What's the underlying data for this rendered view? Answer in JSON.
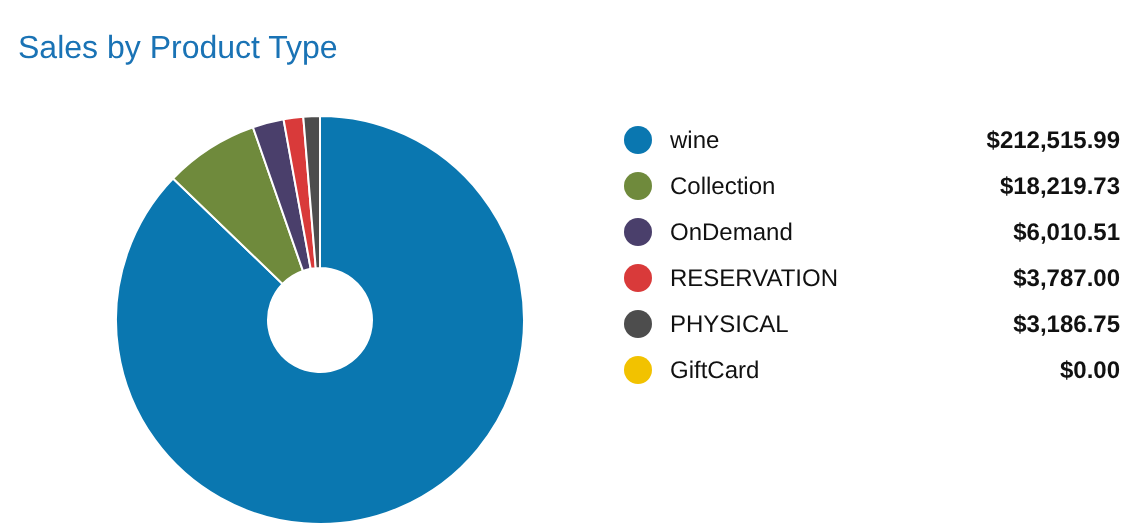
{
  "chart_data": {
    "type": "donut",
    "title": "Sales by Product Type",
    "categories": [
      "wine",
      "Collection",
      "OnDemand",
      "RESERVATION",
      "PHYSICAL",
      "GiftCard"
    ],
    "values": [
      212515.99,
      18219.73,
      6010.51,
      3787.0,
      3186.75,
      0.0
    ],
    "value_labels": [
      "$212,515.99",
      "$18,219.73",
      "$6,010.51",
      "$3,787.00",
      "$3,186.75",
      "$0.00"
    ],
    "colors": [
      "#0a77b0",
      "#6f8a3c",
      "#4a3f6b",
      "#d93a3a",
      "#4d4d4d",
      "#f2c200"
    ],
    "legend": "right"
  }
}
